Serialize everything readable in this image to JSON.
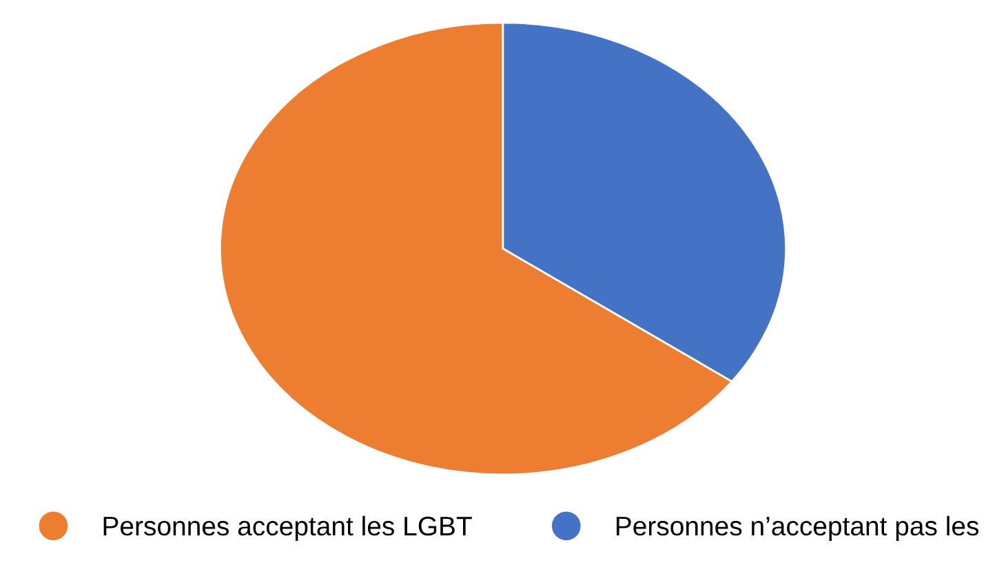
{
  "chart_data": {
    "type": "pie",
    "categories": [
      "Personnes acceptant les LGBT",
      "Personnes n’acceptant pas les"
    ],
    "values": [
      65,
      35
    ],
    "colors": [
      "#ed7d31",
      "#4472c4"
    ],
    "legend": "bottom"
  }
}
